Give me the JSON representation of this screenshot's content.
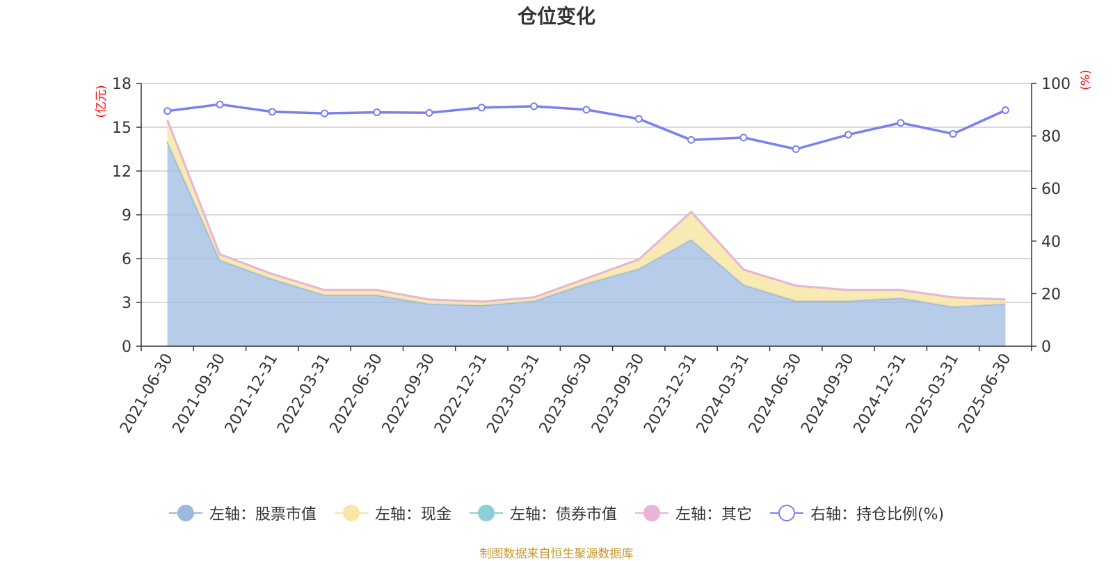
{
  "chart_data": {
    "type": "area",
    "title": "仓位变化",
    "categories": [
      "2021-06-30",
      "2021-09-30",
      "2021-12-31",
      "2022-03-31",
      "2022-06-30",
      "2022-09-30",
      "2022-12-31",
      "2023-03-31",
      "2023-06-30",
      "2023-09-30",
      "2023-12-31",
      "2024-03-31",
      "2024-06-30",
      "2024-09-30",
      "2024-12-31",
      "2025-03-31",
      "2025-06-30"
    ],
    "left_axis": {
      "label": "(亿元)",
      "ylim": [
        0,
        18
      ],
      "ticks": [
        0,
        3,
        6,
        9,
        12,
        15,
        18
      ]
    },
    "right_axis": {
      "label": "(%)",
      "ylim": [
        0,
        100
      ],
      "ticks": [
        0,
        20,
        40,
        60,
        80,
        100
      ]
    },
    "grid": true,
    "legend_position": "bottom",
    "series": [
      {
        "name": "左轴：股票市值",
        "axis": "left",
        "kind": "stacked-area",
        "color": "#9bb8e0",
        "values": [
          14.0,
          5.9,
          4.6,
          3.5,
          3.5,
          2.9,
          2.8,
          3.1,
          4.3,
          5.3,
          7.3,
          4.2,
          3.1,
          3.1,
          3.3,
          2.7,
          2.9
        ]
      },
      {
        "name": "左轴：现金",
        "axis": "left",
        "kind": "stacked-area",
        "color": "#f7e6a6",
        "values": [
          1.4,
          0.35,
          0.3,
          0.3,
          0.3,
          0.25,
          0.2,
          0.2,
          0.3,
          0.6,
          1.85,
          1.0,
          1.0,
          0.7,
          0.5,
          0.6,
          0.25
        ]
      },
      {
        "name": "左轴：债券市值",
        "axis": "left",
        "kind": "stacked-area",
        "color": "#8ccfd6",
        "values": [
          0,
          0,
          0,
          0,
          0,
          0,
          0,
          0,
          0,
          0,
          0,
          0,
          0,
          0,
          0,
          0,
          0
        ]
      },
      {
        "name": "左轴：其它",
        "axis": "left",
        "kind": "stacked-area",
        "color": "#e8b4d8",
        "values": [
          0.1,
          0.05,
          0.05,
          0.05,
          0.05,
          0.05,
          0.05,
          0.05,
          0.05,
          0.05,
          0.05,
          0.05,
          0.05,
          0.05,
          0.05,
          0.05,
          0.05
        ]
      },
      {
        "name": "右轴：持仓比例(%)",
        "axis": "right",
        "kind": "line",
        "color": "#7b7fef",
        "values": [
          89.5,
          92.0,
          89.2,
          88.6,
          89.0,
          88.8,
          90.8,
          91.3,
          90.0,
          86.5,
          78.5,
          79.4,
          75.0,
          80.5,
          85.0,
          80.8,
          89.8
        ]
      }
    ],
    "source": "制图数据来自恒生聚源数据库"
  }
}
